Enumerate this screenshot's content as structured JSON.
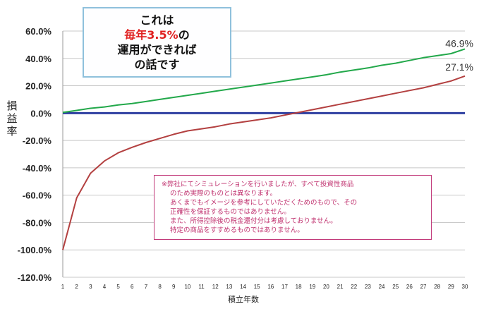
{
  "chart_data": {
    "type": "line",
    "xlabel": "積立年数",
    "ylabel": "損益率",
    "ylim": [
      -120,
      60
    ],
    "y_ticks": [
      "60.0%",
      "40.0%",
      "20.0%",
      "0.0%",
      "-20.0%",
      "-40.0%",
      "-60.0%",
      "-80.0%",
      "-100.0%",
      "-120.0%"
    ],
    "y_tick_values": [
      60,
      40,
      20,
      0,
      -20,
      -40,
      -60,
      -80,
      -100,
      -120
    ],
    "x": [
      1,
      2,
      3,
      4,
      5,
      6,
      7,
      8,
      9,
      10,
      11,
      12,
      13,
      14,
      15,
      16,
      17,
      18,
      19,
      20,
      21,
      22,
      23,
      24,
      25,
      26,
      27,
      28,
      29,
      30
    ],
    "grid": true,
    "series": [
      {
        "color": "#22a84a",
        "end_label": "46.9%",
        "values": [
          0.5,
          2.0,
          3.5,
          4.5,
          6.0,
          7.0,
          8.5,
          10.0,
          11.5,
          13.0,
          14.5,
          16.0,
          17.5,
          19.0,
          20.5,
          22.0,
          23.5,
          25.0,
          26.5,
          28.0,
          30.0,
          31.5,
          33.0,
          35.0,
          36.5,
          38.5,
          40.5,
          42.0,
          43.5,
          46.9
        ]
      },
      {
        "color": "#b34040",
        "end_label": "27.1%",
        "values": [
          -100,
          -62,
          -44,
          -35,
          -29,
          -25,
          -21.5,
          -18.5,
          -15.5,
          -13,
          -11.5,
          -10,
          -8,
          -6.5,
          -5,
          -3.5,
          -1.5,
          0.5,
          2.5,
          4.5,
          6.5,
          8.5,
          10.5,
          12.5,
          14.5,
          16.5,
          18.5,
          21,
          23.5,
          27.1
        ]
      }
    ],
    "baseline": {
      "value": 0,
      "color": "#2e3fa0"
    }
  },
  "callout": {
    "line1": "これは",
    "line2": "毎年3.5%",
    "line2_suffix": "の",
    "line3": "運用ができれば",
    "line4": "の話です"
  },
  "disclaimer": {
    "lines": [
      "※弊社にてシミュレーションを行いましたが、すべて投資性商品",
      "のため実際のものとは異なります。",
      "あくまでもイメージを参考にしていただくためのもので、その",
      "正確性を保証するものではありません。",
      "また、所得控除後の税金還付分は考慮しておりません。",
      "特定の商品をすすめるものではありません。"
    ]
  }
}
